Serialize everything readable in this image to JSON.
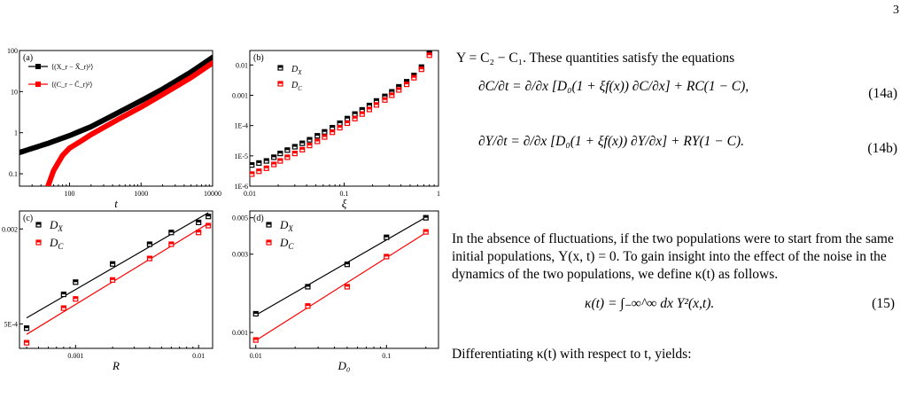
{
  "page_number": "3",
  "text": {
    "intro": "Υ = C₂ − C₁. These quantities satisfy the equations",
    "eq14a_label": "(14a)",
    "eq14b_label": "(14b)",
    "para2": "In the absence of fluctuations, if the two populations were to start from the same initial populations, Υ(x, t) = 0. To gain insight into the effect of the noise in the dynamics of the two populations, we define κ(t) as follows.",
    "eq15_label": "(15)",
    "para3": "Differentiating κ(t) with respect to t, yields:"
  },
  "equations": {
    "eq14a": "∂C/∂t = ∂/∂x [D₀(1 + ξf(x)) ∂C/∂x] + RC(1 − C),",
    "eq14b": "∂Υ/∂t = ∂/∂x [D₀(1 + ξf(x)) ∂Υ/∂x] + RΥ(1 − C).",
    "eq15": "κ(t) = ∫₋∞^∞ dx Υ²(x,t)."
  },
  "chart_data": [
    {
      "panel": "(a)",
      "type": "line",
      "xlabel": "t",
      "xscale": "log",
      "yscale": "log",
      "xlim": [
        20,
        10000
      ],
      "ylim": [
        0.05,
        100
      ],
      "xticks": [
        "100",
        "1000",
        "10000"
      ],
      "yticks": [
        "0.1",
        "1",
        "10",
        "100"
      ],
      "legend": "top-left",
      "series": [
        {
          "name": "⟨(X_r − X̄_r)²⟩",
          "color": "#000000",
          "x": [
            20,
            50,
            100,
            200,
            500,
            1000,
            2000,
            5000,
            10000
          ],
          "y": [
            0.33,
            0.55,
            0.85,
            1.4,
            3.2,
            6.0,
            11.5,
            30,
            68
          ]
        },
        {
          "name": "⟨(C_r − C̄_r)²⟩",
          "color": "#ff0000",
          "x": [
            50,
            60,
            80,
            100,
            150,
            200,
            500,
            1000,
            2000,
            5000,
            10000
          ],
          "y": [
            0.05,
            0.12,
            0.28,
            0.42,
            0.65,
            0.9,
            2.2,
            4.2,
            8.5,
            22,
            50
          ]
        }
      ]
    },
    {
      "panel": "(b)",
      "type": "scatter",
      "xlabel": "ξ",
      "xscale": "log",
      "yscale": "log",
      "xlim": [
        0.01,
        1
      ],
      "ylim": [
        1e-06,
        0.03
      ],
      "xticks": [
        "0.01",
        "0.1",
        "1"
      ],
      "yticks": [
        "1E-6",
        "1E-5",
        "1E-4",
        "0.001",
        "0.01"
      ],
      "legend": "top-left",
      "series": [
        {
          "name": "D",
          "sub": "X",
          "color": "#000000",
          "x": [
            0.0105,
            0.0125,
            0.015,
            0.018,
            0.021,
            0.025,
            0.03,
            0.036,
            0.043,
            0.052,
            0.062,
            0.075,
            0.09,
            0.108,
            0.13,
            0.155,
            0.185,
            0.22,
            0.27,
            0.32,
            0.38,
            0.46,
            0.55,
            0.66,
            0.8
          ],
          "y": [
            5e-06,
            5.8e-06,
            6.8e-06,
            9e-06,
            1.2e-05,
            1.55e-05,
            2e-05,
            2.6e-05,
            3.4e-05,
            4.6e-05,
            6.2e-05,
            8.5e-05,
            0.00012,
            0.00017,
            0.00024,
            0.00033,
            0.00046,
            0.00065,
            0.00092,
            0.0013,
            0.0019,
            0.0028,
            0.0045,
            0.0085,
            0.025
          ]
        },
        {
          "name": "D",
          "sub": "C",
          "color": "#ff0000",
          "x": [
            0.0105,
            0.0125,
            0.015,
            0.018,
            0.021,
            0.025,
            0.03,
            0.036,
            0.043,
            0.052,
            0.062,
            0.075,
            0.09,
            0.108,
            0.13,
            0.155,
            0.185,
            0.22,
            0.27,
            0.32,
            0.38,
            0.46,
            0.55,
            0.66,
            0.8
          ],
          "y": [
            2.5e-06,
            3.1e-06,
            3.9e-06,
            5.2e-06,
            6.8e-06,
            9e-06,
            1.2e-05,
            1.6e-05,
            2.2e-05,
            3e-05,
            4.2e-05,
            6e-05,
            8.5e-05,
            0.00012,
            0.00017,
            0.00024,
            0.00034,
            0.00048,
            0.0007,
            0.001,
            0.0015,
            0.0023,
            0.0038,
            0.0072,
            0.021
          ]
        }
      ]
    },
    {
      "panel": "(c)",
      "type": "scatter",
      "xlabel": "R",
      "xscale": "log",
      "yscale": "log",
      "xlim": [
        0.00035,
        0.013
      ],
      "ylim": [
        0.00035,
        0.0026
      ],
      "xticks": [
        "0.001",
        "0.01"
      ],
      "yticks": [
        "5E-4",
        "0.002"
      ],
      "legend": "top-left",
      "series": [
        {
          "name": "D",
          "sub": "X",
          "color": "#000000",
          "x": [
            0.0004,
            0.0008,
            0.001,
            0.002,
            0.004,
            0.006,
            0.01,
            0.012
          ],
          "y": [
            0.00047,
            0.00077,
            0.00092,
            0.0012,
            0.0016,
            0.0019,
            0.0022,
            0.0024
          ]
        },
        {
          "name": "D",
          "sub": "C",
          "color": "#ff0000",
          "x": [
            0.0004,
            0.0008,
            0.001,
            0.002,
            0.004,
            0.006,
            0.01,
            0.012
          ],
          "y": [
            0.00038,
            0.00063,
            0.00072,
            0.00095,
            0.0013,
            0.0016,
            0.0019,
            0.0021
          ]
        }
      ]
    },
    {
      "panel": "(d)",
      "type": "scatter",
      "xlabel": "D₀",
      "xscale": "log",
      "yscale": "log",
      "xlim": [
        0.009,
        0.25
      ],
      "ylim": [
        0.0008,
        0.0055
      ],
      "xticks": [
        "0.01",
        "0.1"
      ],
      "yticks": [
        "0.001",
        "0.003",
        "0.005"
      ],
      "legend": "top-left",
      "series": [
        {
          "name": "D",
          "sub": "X",
          "color": "#000000",
          "x": [
            0.01,
            0.025,
            0.05,
            0.1,
            0.2
          ],
          "y": [
            0.0013,
            0.0019,
            0.0026,
            0.0038,
            0.005
          ]
        },
        {
          "name": "D",
          "sub": "C",
          "color": "#ff0000",
          "x": [
            0.01,
            0.025,
            0.05,
            0.1,
            0.2
          ],
          "y": [
            0.0009,
            0.00145,
            0.0019,
            0.0029,
            0.0041
          ]
        }
      ]
    }
  ]
}
